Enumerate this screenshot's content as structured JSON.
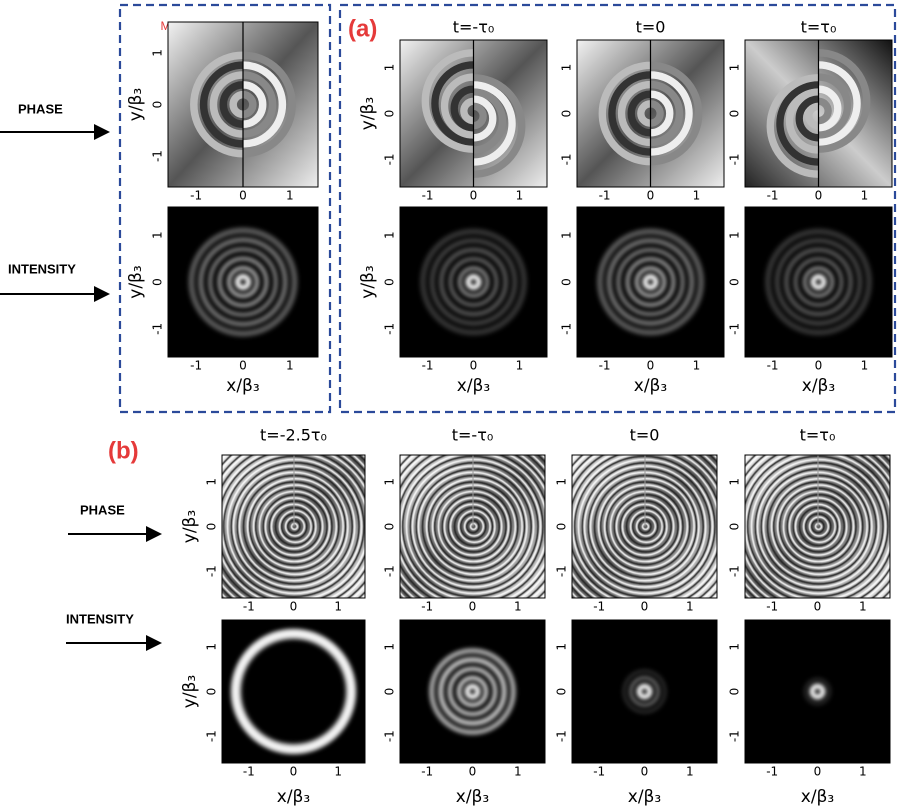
{
  "panel_a": {
    "label": "(a)",
    "monochromatic_label": "MONOCHROMATIC CASE",
    "columns": [
      "t=-τ₀",
      "t=0",
      "t=τ₀"
    ]
  },
  "panel_b": {
    "label": "(b)",
    "columns": [
      "t=-2.5τ₀",
      "t=-τ₀",
      "t=0",
      "t=τ₀"
    ]
  },
  "row_labels": [
    "PHASE",
    "INTENSITY"
  ],
  "axes": {
    "x_label": "x/β₃",
    "y_label": "y/β₃",
    "ticks": [
      "-1",
      "0",
      "1"
    ]
  }
}
